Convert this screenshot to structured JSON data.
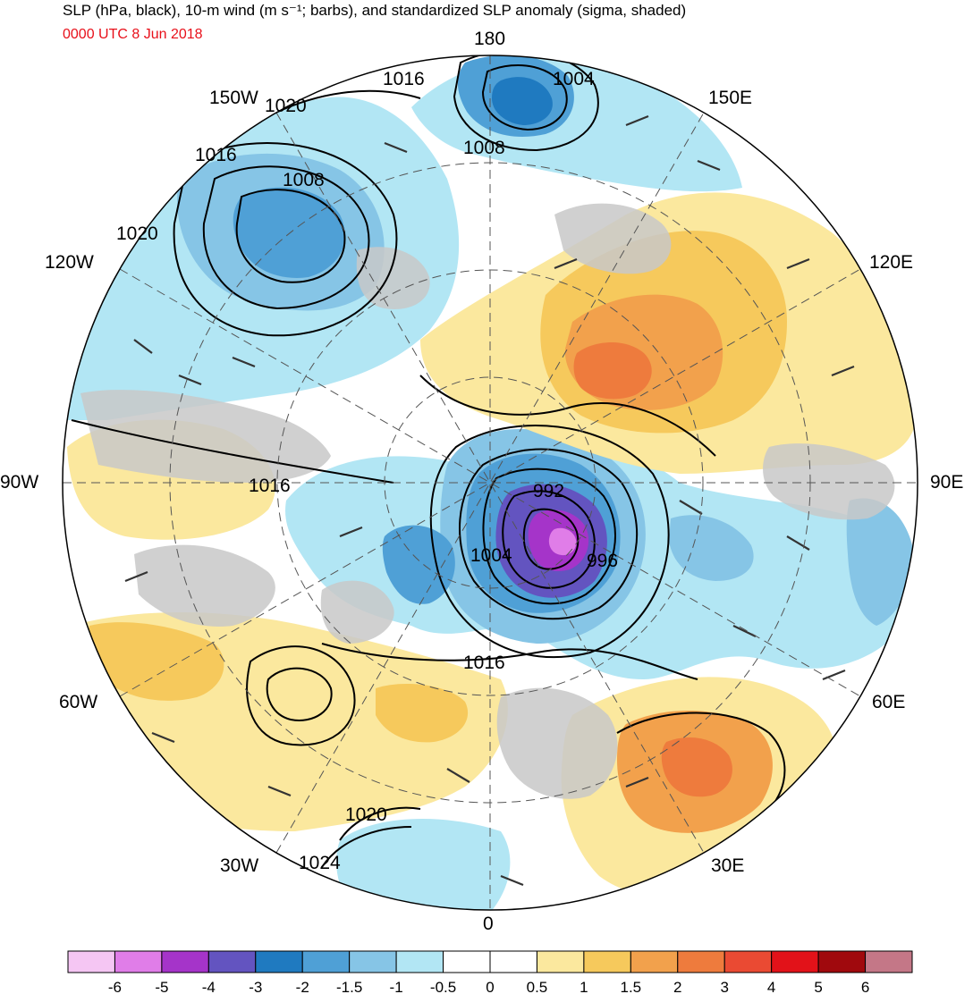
{
  "title": "SLP (hPa, black), 10-m wind (m s⁻¹; barbs), and standardized SLP anomaly (sigma, shaded)",
  "subtitle": "0000 UTC 8 Jun 2018",
  "longitude_labels": [
    "180",
    "150E",
    "120E",
    "90E",
    "60E",
    "30E",
    "0",
    "30W",
    "60W",
    "90W",
    "120W",
    "150W"
  ],
  "isobar_labels": [
    "1016",
    "1004",
    "1020",
    "1008",
    "1016",
    "1008",
    "1020",
    "1016",
    "992",
    "996",
    "1004",
    "1016",
    "1020",
    "1024"
  ],
  "colorbar": {
    "tick_labels": [
      "-6",
      "-5",
      "-4",
      "-3",
      "-2",
      "-1.5",
      "-1",
      "-0.5",
      "0",
      "0.5",
      "1",
      "1.5",
      "2",
      "3",
      "4",
      "5",
      "6"
    ],
    "colors": [
      "#f5c6f3",
      "#e07de8",
      "#a534c9",
      "#6354c0",
      "#1f7ac0",
      "#4fa0d6",
      "#86c5e6",
      "#b2e6f4",
      "#ffffff",
      "#ffffff",
      "#fbe89e",
      "#f6c95c",
      "#f2a14c",
      "#ee7b3d",
      "#ea4a33",
      "#e21219",
      "#a0090d",
      "#c47787"
    ]
  },
  "palette": {
    "land_gray": "#c8c8c8",
    "light_blue": "#b2e6f4",
    "mid_blue": "#86c5e6",
    "blue": "#4fa0d6",
    "dark_blue": "#1f7ac0",
    "purple": "#a534c9",
    "light_yellow": "#fbe89e",
    "yellow": "#f6c95c",
    "orange": "#f2a14c",
    "dark_orange": "#ee7b3d"
  }
}
